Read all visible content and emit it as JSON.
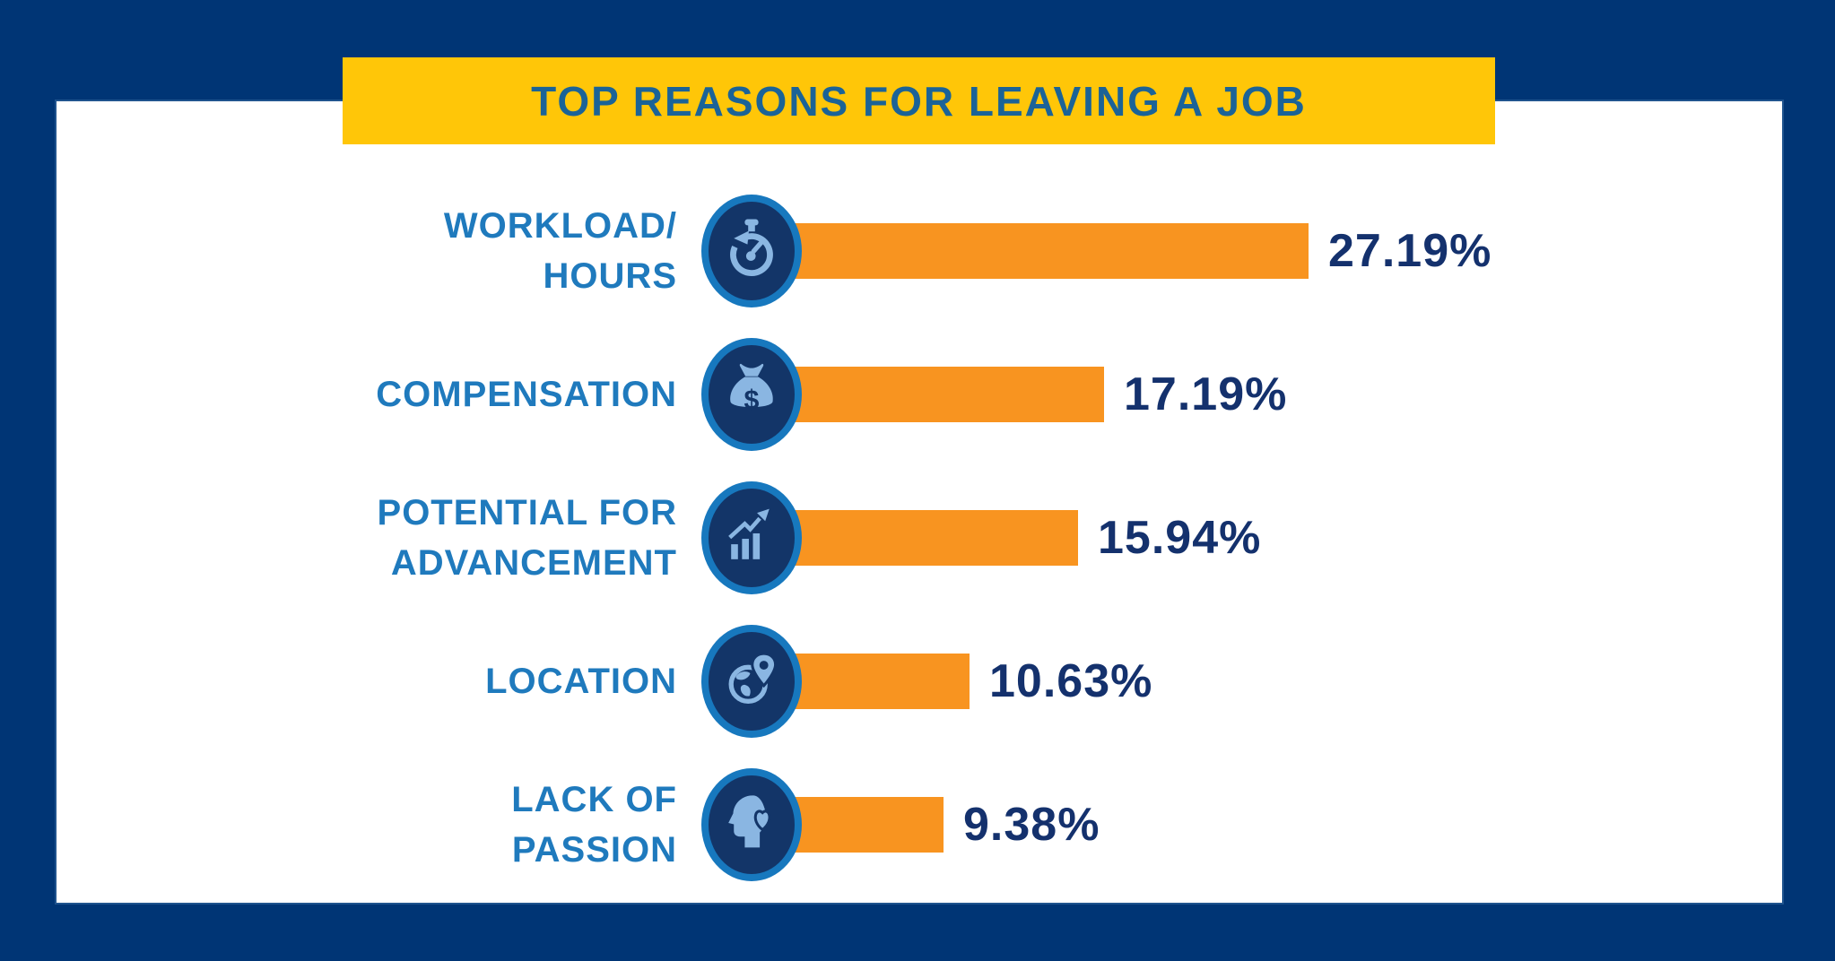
{
  "banner": {
    "title": "TOP REASONS FOR LEAVING A JOB"
  },
  "chart_data": {
    "type": "bar",
    "orientation": "horizontal",
    "title": "TOP REASONS FOR LEAVING A JOB",
    "categories": [
      "WORKLOAD/\nHOURS",
      "COMPENSATION",
      "POTENTIAL FOR\nADVANCEMENT",
      "LOCATION",
      "LACK OF\nPASSION"
    ],
    "values": [
      27.19,
      17.19,
      15.94,
      10.63,
      9.38
    ],
    "value_labels": [
      "27.19%",
      "17.19%",
      "15.94%",
      "10.63%",
      "9.38%"
    ],
    "icons": [
      "stopwatch-icon",
      "money-bag-icon",
      "growth-chart-icon",
      "globe-pin-icon",
      "head-heart-icon"
    ],
    "xlim": [
      0,
      30
    ],
    "grid": false,
    "legend": false,
    "value_label_position": "right-of-bar"
  },
  "colors": {
    "background_navy": "#003575",
    "panel_white": "#FFFFFF",
    "banner_yellow": "#FFC608",
    "title_blue": "#1B6397",
    "label_blue": "#1F7ABD",
    "value_navy": "#14316D",
    "bar_orange": "#F89420",
    "icon_ring_blue": "#1778BE",
    "icon_inner_navy": "#133568",
    "icon_glyph_blue": "#8AB6E2"
  }
}
